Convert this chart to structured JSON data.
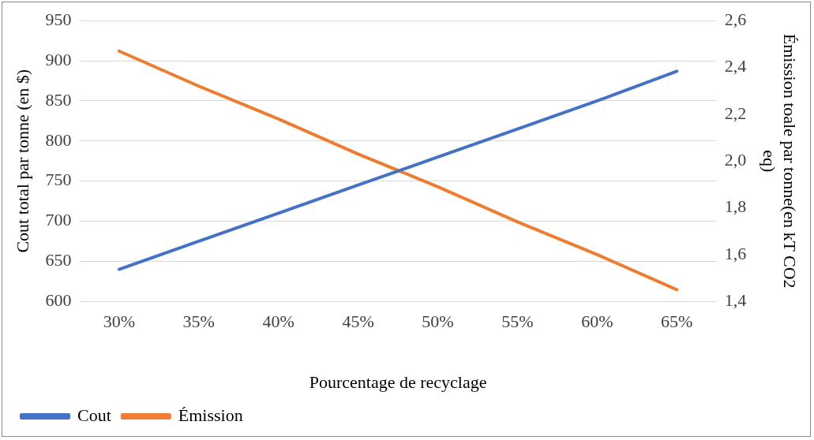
{
  "chart_data": {
    "type": "line",
    "xlabel": "Pourcentage de recyclage",
    "ylabel": "Cout total par tonne (en $)",
    "y2label": "Émission toale par tonne(en kT CO2 eq)",
    "categories": [
      "30%",
      "35%",
      "40%",
      "45%",
      "50%",
      "55%",
      "60%",
      "65%"
    ],
    "series": [
      {
        "name": "Cout",
        "color": "#4472c4",
        "values": [
          640,
          675,
          710,
          745,
          780,
          815,
          850,
          887
        ]
      },
      {
        "name": "Émission",
        "color": "#ed7d31",
        "axis": "y2",
        "values": [
          2.47,
          2.32,
          2.18,
          2.03,
          1.89,
          1.74,
          1.6,
          1.45
        ]
      }
    ],
    "ylim": [
      600,
      950
    ],
    "yticks": [
      600,
      650,
      700,
      750,
      800,
      850,
      900,
      950
    ],
    "y2lim": [
      1.4,
      2.6
    ],
    "y2ticks": [
      {
        "value": 1.4,
        "label": "1,4"
      },
      {
        "value": 1.6,
        "label": "1,6"
      },
      {
        "value": 1.8,
        "label": "1,8"
      },
      {
        "value": 2.0,
        "label": "2,0"
      },
      {
        "value": 2.2,
        "label": "2,2"
      },
      {
        "value": 2.4,
        "label": "2,4"
      },
      {
        "value": 2.6,
        "label": "2,6"
      }
    ],
    "grid": "y",
    "legend": "bottom left",
    "marker": "none",
    "line_style": "solid"
  }
}
